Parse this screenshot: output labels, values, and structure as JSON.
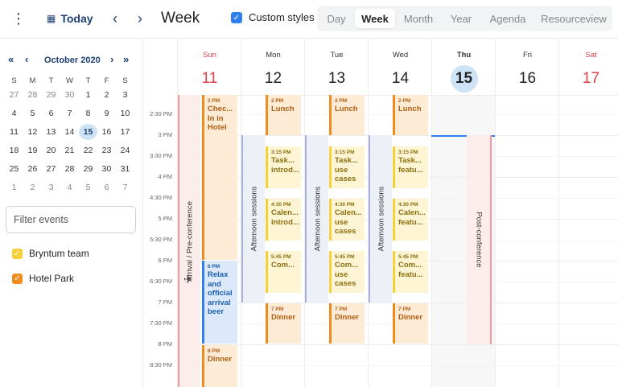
{
  "toolbar": {
    "today_label": "Today",
    "period_label": "Week",
    "custom_styles_label": "Custom styles",
    "modes": [
      "Day",
      "Week",
      "Month",
      "Year",
      "Agenda",
      "Resourceview"
    ],
    "active_mode": "Week"
  },
  "mini_calendar": {
    "month_label": "October 2020",
    "weekdays": [
      "S",
      "M",
      "T",
      "W",
      "T",
      "F",
      "S"
    ],
    "weeks": [
      [
        "27",
        "28",
        "29",
        "30",
        "1",
        "2",
        "3"
      ],
      [
        "4",
        "5",
        "6",
        "7",
        "8",
        "9",
        "10"
      ],
      [
        "11",
        "12",
        "13",
        "14",
        "15",
        "16",
        "17"
      ],
      [
        "18",
        "19",
        "20",
        "21",
        "22",
        "23",
        "24"
      ],
      [
        "25",
        "26",
        "27",
        "28",
        "29",
        "30",
        "31"
      ],
      [
        "1",
        "2",
        "3",
        "4",
        "5",
        "6",
        "7"
      ]
    ],
    "today": "15"
  },
  "filter": {
    "placeholder": "Filter events"
  },
  "resources": [
    {
      "name": "Bryntum team",
      "color": "#f7cf38",
      "checked": true
    },
    {
      "name": "Hotel Park",
      "color": "#f08c1e",
      "checked": true
    }
  ],
  "days": [
    {
      "name": "Sun",
      "date": "11",
      "weekend": true
    },
    {
      "name": "Mon",
      "date": "12"
    },
    {
      "name": "Tue",
      "date": "13"
    },
    {
      "name": "Wed",
      "date": "14"
    },
    {
      "name": "Thu",
      "date": "15",
      "today": true
    },
    {
      "name": "Fri",
      "date": "16"
    },
    {
      "name": "Sat",
      "date": "17",
      "weekend": true
    }
  ],
  "times": [
    "2:30 PM",
    "3 PM",
    "3:30 PM",
    "4 PM",
    "4:30 PM",
    "5 PM",
    "5:30 PM",
    "6 PM",
    "6:30 PM",
    "7 PM",
    "7:30 PM",
    "8 PM",
    "8:30 PM"
  ],
  "events": {
    "sun_checkin": {
      "time": "2 PM",
      "name": "Chec... In in Hotel"
    },
    "sun_relax": {
      "time": "6 PM",
      "name": "Relax and official arrival beer"
    },
    "sun_dinner": {
      "time": "8 PM",
      "name": "Dinner"
    },
    "mon_lunch": {
      "time": "2 PM",
      "name": "Lunch"
    },
    "mon_task": {
      "time": "3:15 PM",
      "name": "Task... introd..."
    },
    "mon_cal": {
      "time": "4:30 PM",
      "name": "Calen... introd..."
    },
    "mon_com": {
      "time": "5:45 PM",
      "name": "Com..."
    },
    "mon_dinner": {
      "time": "7 PM",
      "name": "Dinner"
    },
    "tue_lunch": {
      "time": "2 PM",
      "name": "Lunch"
    },
    "tue_task": {
      "time": "3:15 PM",
      "name": "Task... use cases"
    },
    "tue_cal": {
      "time": "4:30 PM",
      "name": "Calen... use cases"
    },
    "tue_com": {
      "time": "5:45 PM",
      "name": "Com... use cases"
    },
    "tue_dinner": {
      "time": "7 PM",
      "name": "Dinner"
    },
    "wed_lunch": {
      "time": "2 PM",
      "name": "Lunch"
    },
    "wed_task": {
      "time": "3:15 PM",
      "name": "Task... featu..."
    },
    "wed_cal": {
      "time": "4:30 PM",
      "name": "Calen... featu..."
    },
    "wed_com": {
      "time": "5:45 PM",
      "name": "Com... featu..."
    },
    "wed_dinner": {
      "time": "7 PM",
      "name": "Dinner"
    }
  },
  "bands": {
    "arrival": "Arrival / Pre-conference",
    "afternoon": "Afternoon sessions",
    "post": "Post-conference"
  }
}
